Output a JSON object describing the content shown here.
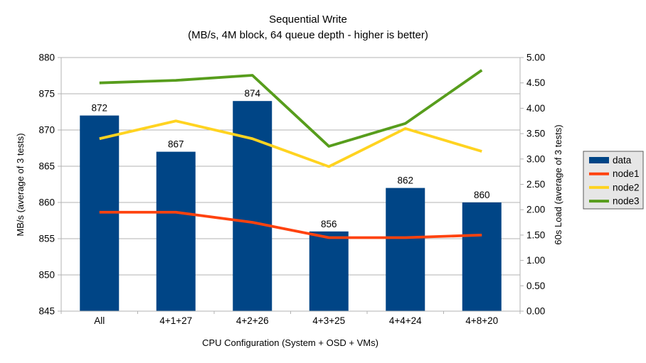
{
  "chart_data": {
    "type": "bar",
    "subtype": "combo-bar-line",
    "title": "Sequential Write",
    "subtitle": "(MB/s, 4M block, 64 queue depth - higher is better)",
    "xlabel": "CPU Configuration (System + OSD + VMs)",
    "ylabel_left": "MB/s (average of 3 tests)",
    "ylabel_right": "60s Load (average of 3 tests)",
    "categories": [
      "All",
      "4+1+27",
      "4+2+26",
      "4+3+25",
      "4+4+24",
      "4+8+20"
    ],
    "bar_series": {
      "name": "data",
      "axis": "left",
      "color": "#004586",
      "values": [
        872,
        867,
        874,
        856,
        862,
        860
      ],
      "data_labels": [
        "872",
        "867",
        "874",
        "856",
        "862",
        "860"
      ]
    },
    "line_series": [
      {
        "name": "node1",
        "axis": "right",
        "color": "#FF420E",
        "values": [
          1.95,
          1.95,
          1.75,
          1.45,
          1.45,
          1.5
        ]
      },
      {
        "name": "node2",
        "axis": "right",
        "color": "#FFD320",
        "values": [
          3.4,
          3.75,
          3.4,
          2.85,
          3.6,
          3.15
        ]
      },
      {
        "name": "node3",
        "axis": "right",
        "color": "#579D1C",
        "values": [
          4.5,
          4.55,
          4.65,
          3.25,
          3.7,
          4.75
        ]
      }
    ],
    "y_left": {
      "min": 845,
      "max": 880,
      "step": 5,
      "decimals": 0
    },
    "y_right": {
      "min": 0,
      "max": 5,
      "step": 0.5,
      "decimals": 2
    },
    "grid": "horizontal",
    "legend": {
      "position": "right",
      "entries": [
        "data",
        "node1",
        "node2",
        "node3"
      ]
    },
    "colors": {
      "background": "#ffffff",
      "gridline": "#b3b3b3",
      "axis": "#b3b3b3",
      "text": "#000000",
      "legend_bg": "#e6e6e6",
      "legend_border": "#595959"
    }
  }
}
